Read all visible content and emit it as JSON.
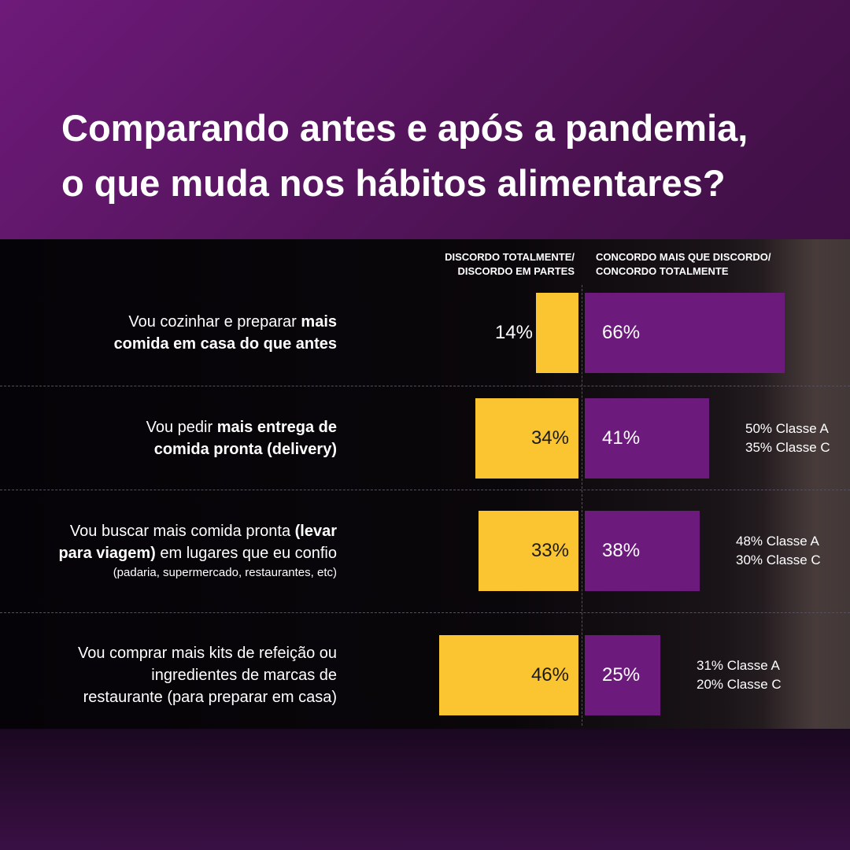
{
  "title_lines": [
    "Comparando antes e após a pandemia,",
    "o que muda nos hábitos alimentares?"
  ],
  "column_headers": {
    "disagree": [
      "DISCORDO TOTALMENTE/",
      "DISCORDO EM PARTES"
    ],
    "agree": [
      "CONCORDO MAIS QUE DISCORDO/",
      "CONCORDO TOTALMENTE"
    ]
  },
  "chart_data": {
    "type": "bar",
    "orientation": "horizontal-diverging",
    "series": [
      {
        "name": "DISCORDO TOTALMENTE/ DISCORDO EM PARTES",
        "values": [
          14,
          34,
          33,
          46
        ],
        "color": "#fbc531"
      },
      {
        "name": "CONCORDO MAIS QUE DISCORDO/ CONCORDO TOTALMENTE",
        "values": [
          66,
          41,
          38,
          25
        ],
        "color": "#6c1b7d"
      }
    ],
    "rows": [
      {
        "label_parts": [
          {
            "t": "Vou cozinhar e preparar ",
            "b": false
          },
          {
            "t": "mais",
            "b": true
          },
          {
            "br": true
          },
          {
            "t": "comida em casa do que antes",
            "b": true
          }
        ],
        "small": "",
        "disagree_label": "14%",
        "agree_label": "66%",
        "notes": []
      },
      {
        "label_parts": [
          {
            "t": "Vou pedir ",
            "b": false
          },
          {
            "t": "mais entrega de",
            "b": true
          },
          {
            "br": true
          },
          {
            "t": "comida pronta (delivery)",
            "b": true
          }
        ],
        "small": "",
        "disagree_label": "34%",
        "agree_label": "41%",
        "notes": [
          "50% Classe A",
          "35% Classe C"
        ]
      },
      {
        "label_parts": [
          {
            "t": "Vou buscar mais comida pronta ",
            "b": false
          },
          {
            "t": "(levar",
            "b": true
          },
          {
            "br": true
          },
          {
            "t": "para viagem)",
            "b": true
          },
          {
            "t": " em lugares que eu confio",
            "b": false
          }
        ],
        "small": "(padaria, supermercado, restaurantes, etc)",
        "disagree_label": "33%",
        "agree_label": "38%",
        "notes": [
          "48% Classe A",
          "30% Classe C"
        ]
      },
      {
        "label_parts": [
          {
            "t": "Vou comprar mais kits de refeição ou",
            "b": false
          },
          {
            "br": true
          },
          {
            "t": "ingredientes de marcas de",
            "b": false
          },
          {
            "br": true
          },
          {
            "t": "restaurante (para preparar em casa)",
            "b": false
          }
        ],
        "small": "",
        "disagree_label": "46%",
        "agree_label": "25%",
        "notes": [
          "31% Classe A",
          "20% Classe C"
        ]
      }
    ]
  }
}
